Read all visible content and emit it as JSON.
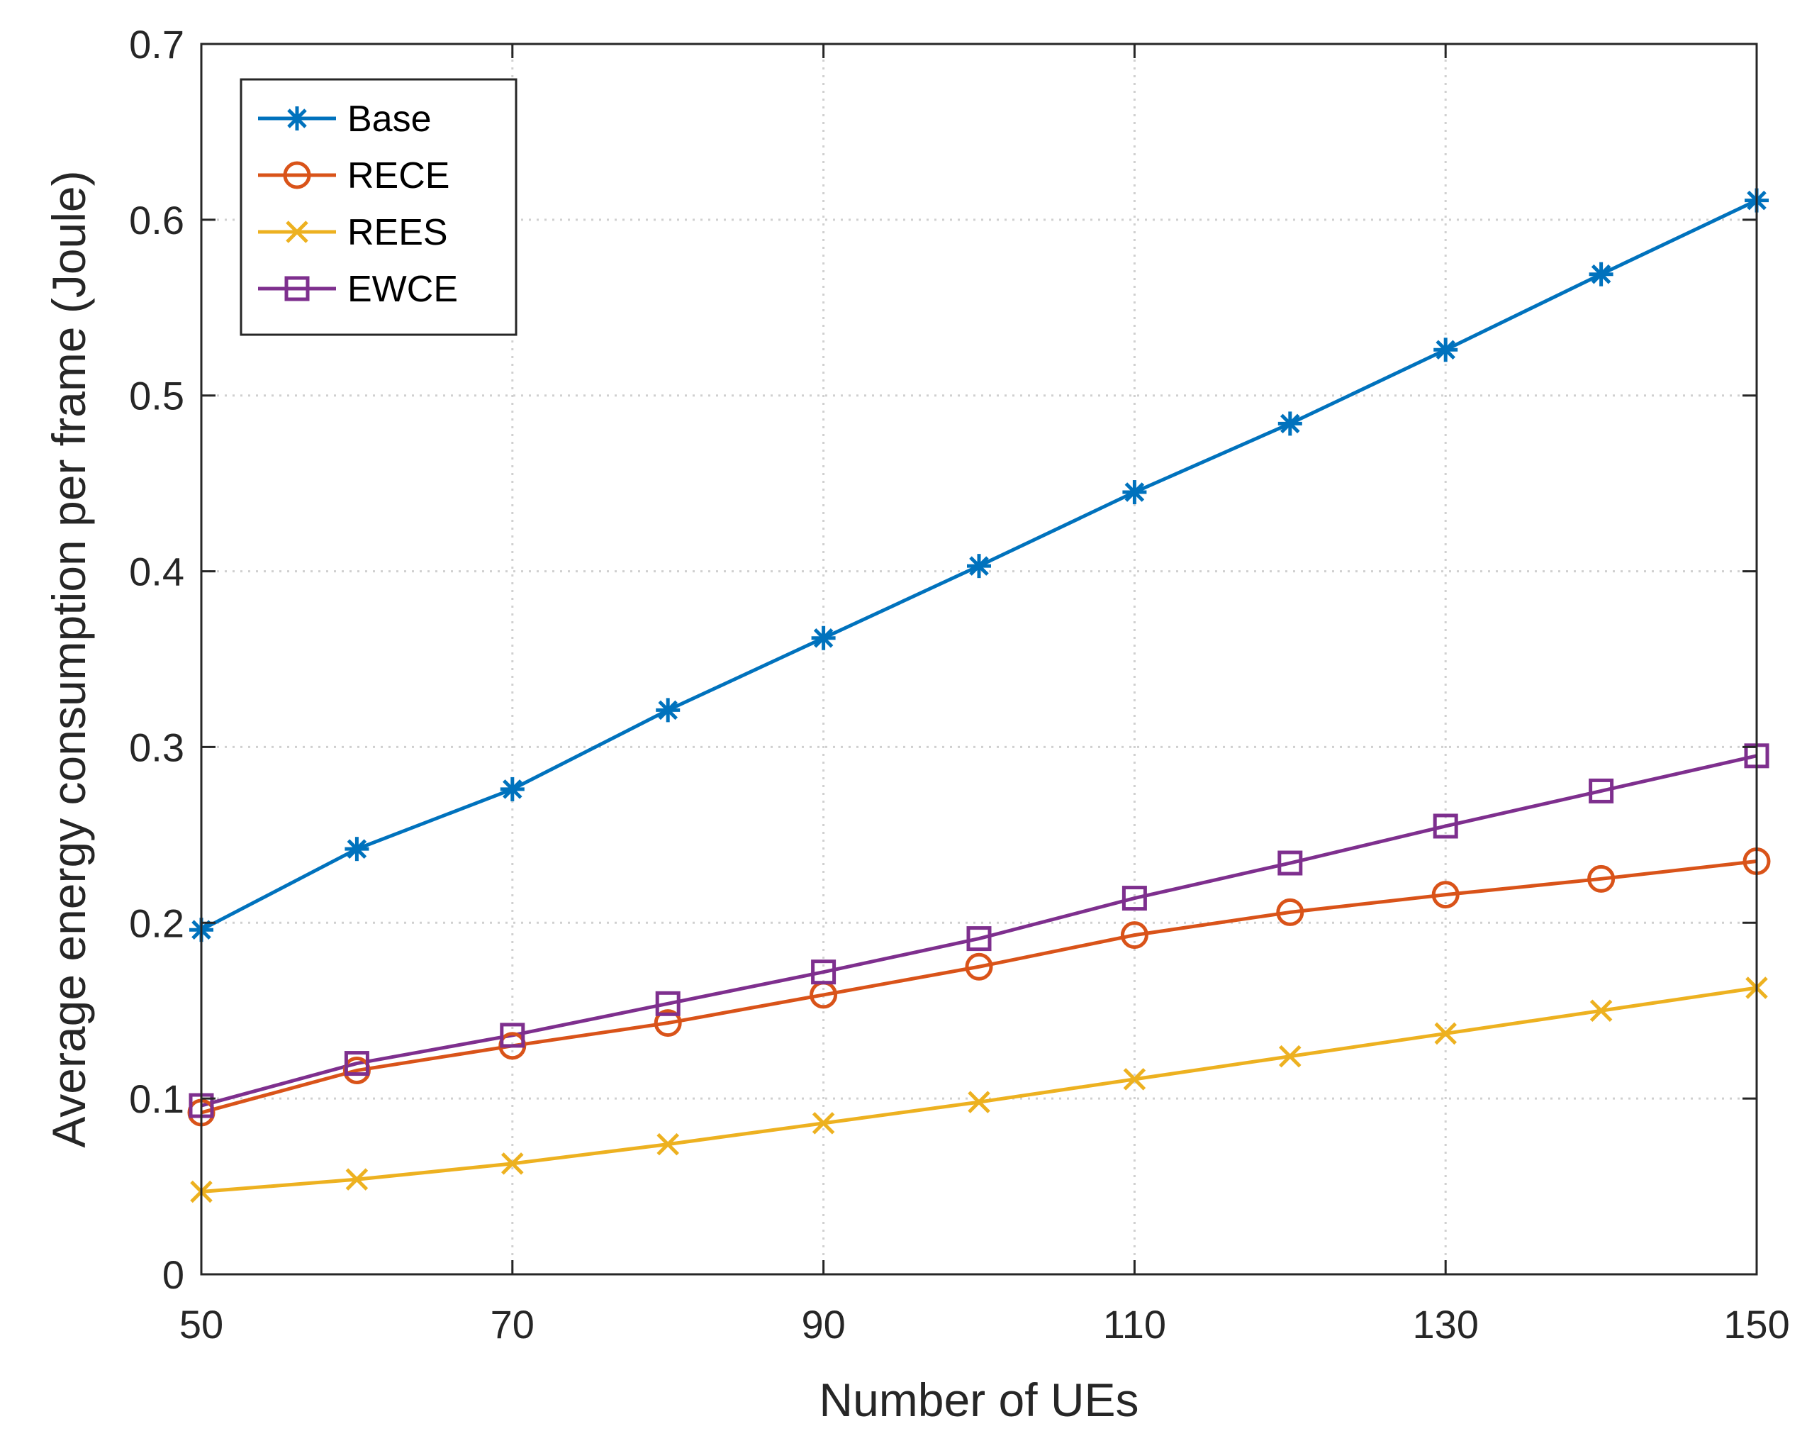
{
  "chart_data": {
    "type": "line",
    "title": "",
    "xlabel": "Number of UEs",
    "ylabel": "Average energy consumption per frame (Joule)",
    "x": [
      50,
      60,
      70,
      80,
      90,
      100,
      110,
      120,
      130,
      140,
      150
    ],
    "xlim": [
      50,
      150
    ],
    "ylim": [
      0,
      0.7
    ],
    "xticks": [
      "50",
      "70",
      "90",
      "110",
      "130",
      "150"
    ],
    "yticks": [
      "0",
      "0.1",
      "0.2",
      "0.3",
      "0.4",
      "0.5",
      "0.6",
      "0.7"
    ],
    "grid": true,
    "legend_location": "top-left",
    "series": [
      {
        "name": "Base",
        "color": "#0072BD",
        "marker": "asterisk",
        "values": [
          0.196,
          0.242,
          0.276,
          0.321,
          0.362,
          0.403,
          0.445,
          0.484,
          0.526,
          0.569,
          0.611
        ]
      },
      {
        "name": "RECE",
        "color": "#D95319",
        "marker": "circle",
        "values": [
          0.092,
          0.116,
          0.13,
          0.143,
          0.159,
          0.175,
          0.193,
          0.206,
          0.216,
          0.225,
          0.235
        ]
      },
      {
        "name": "REES",
        "color": "#EDB120",
        "marker": "x",
        "values": [
          0.047,
          0.054,
          0.063,
          0.074,
          0.086,
          0.098,
          0.111,
          0.124,
          0.137,
          0.15,
          0.163
        ]
      },
      {
        "name": "EWCE",
        "color": "#7E2F8E",
        "marker": "square",
        "values": [
          0.096,
          0.12,
          0.136,
          0.154,
          0.172,
          0.191,
          0.214,
          0.234,
          0.255,
          0.275,
          0.295
        ]
      }
    ]
  }
}
